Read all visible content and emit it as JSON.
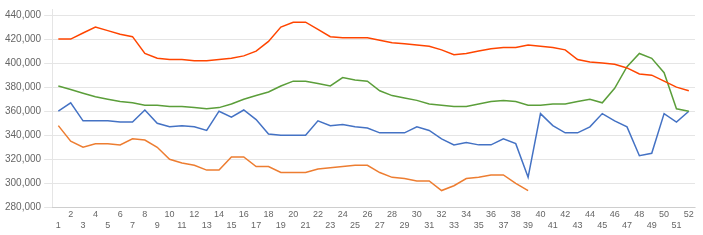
{
  "chart_data": {
    "type": "line",
    "x": [
      1,
      2,
      3,
      4,
      5,
      6,
      7,
      8,
      9,
      10,
      11,
      12,
      13,
      14,
      15,
      16,
      17,
      18,
      19,
      20,
      21,
      22,
      23,
      24,
      25,
      26,
      27,
      28,
      29,
      30,
      31,
      32,
      33,
      34,
      35,
      36,
      37,
      38,
      39,
      40,
      41,
      42,
      43,
      44,
      45,
      46,
      47,
      48,
      49,
      50,
      51,
      52
    ],
    "series": [
      {
        "color": "#FF4500",
        "values": [
          420000,
          420000,
          425000,
          430000,
          427000,
          424000,
          422000,
          408000,
          404000,
          403000,
          403000,
          402000,
          402000,
          403000,
          404000,
          406000,
          410000,
          418000,
          430000,
          434000,
          434000,
          428000,
          422000,
          421000,
          421000,
          421000,
          419000,
          417000,
          416000,
          415000,
          414000,
          411000,
          407000,
          408000,
          410000,
          412000,
          413000,
          413000,
          415000,
          414000,
          413000,
          411000,
          403000,
          401000,
          400000,
          399000,
          396000,
          391000,
          390000,
          385000,
          380000,
          377000
        ]
      },
      {
        "color": "#5B9E3A",
        "values": [
          381000,
          378000,
          375000,
          372000,
          370000,
          368000,
          367000,
          365000,
          365000,
          364000,
          364000,
          363000,
          362000,
          363000,
          366000,
          370000,
          373000,
          376000,
          381000,
          385000,
          385000,
          383000,
          381000,
          388000,
          386000,
          385000,
          377000,
          373000,
          371000,
          369000,
          366000,
          365000,
          364000,
          364000,
          366000,
          368000,
          369000,
          368000,
          365000,
          365000,
          366000,
          366000,
          368000,
          370000,
          367000,
          379000,
          397000,
          408000,
          404000,
          392000,
          362000,
          360000
        ]
      },
      {
        "color": "#4472C4",
        "values": [
          360000,
          367000,
          352000,
          352000,
          352000,
          351000,
          351000,
          361000,
          350000,
          347000,
          348000,
          347000,
          344000,
          360000,
          355000,
          361000,
          353000,
          341000,
          340000,
          340000,
          340000,
          352000,
          348000,
          349000,
          347000,
          346000,
          342000,
          342000,
          342000,
          347000,
          344000,
          337000,
          332000,
          334000,
          332000,
          332000,
          337000,
          333000,
          305000,
          358000,
          348000,
          342000,
          342000,
          347000,
          358000,
          352000,
          347000,
          323000,
          325000,
          358000,
          351000,
          360000
        ]
      },
      {
        "color": "#ED7D31",
        "values": [
          348000,
          335000,
          330000,
          333000,
          333000,
          332000,
          337000,
          336000,
          330000,
          320000,
          317000,
          315000,
          311000,
          311000,
          322000,
          322000,
          314000,
          314000,
          309000,
          309000,
          309000,
          312000,
          313000,
          314000,
          315000,
          315000,
          309000,
          305000,
          304000,
          302000,
          302000,
          294000,
          298000,
          304000,
          305000,
          307000,
          307000,
          300000,
          294000,
          null,
          null,
          null,
          null,
          null,
          null,
          null,
          null,
          null,
          null,
          null,
          null,
          null
        ]
      }
    ],
    "xlim": [
      0.5,
      52.5
    ],
    "xticks": [
      1,
      2,
      3,
      4,
      5,
      6,
      7,
      8,
      9,
      10,
      11,
      12,
      13,
      14,
      15,
      16,
      17,
      18,
      19,
      20,
      21,
      22,
      23,
      24,
      25,
      26,
      27,
      28,
      29,
      30,
      31,
      32,
      33,
      34,
      35,
      36,
      37,
      38,
      39,
      40,
      41,
      42,
      43,
      44,
      45,
      46,
      47,
      48,
      49,
      50,
      51,
      52
    ],
    "ylim": [
      280000,
      445000
    ],
    "yticks": [
      {
        "value": 280000,
        "label": "280,000"
      },
      {
        "value": 300000,
        "label": "300,000"
      },
      {
        "value": 320000,
        "label": "320,000"
      },
      {
        "value": 340000,
        "label": "340,000"
      },
      {
        "value": 360000,
        "label": "360,000"
      },
      {
        "value": 380000,
        "label": "380,000"
      },
      {
        "value": 400000,
        "label": "400,000"
      },
      {
        "value": 420000,
        "label": "420,000"
      },
      {
        "value": 440000,
        "label": "440,000"
      }
    ],
    "grid": "y"
  }
}
